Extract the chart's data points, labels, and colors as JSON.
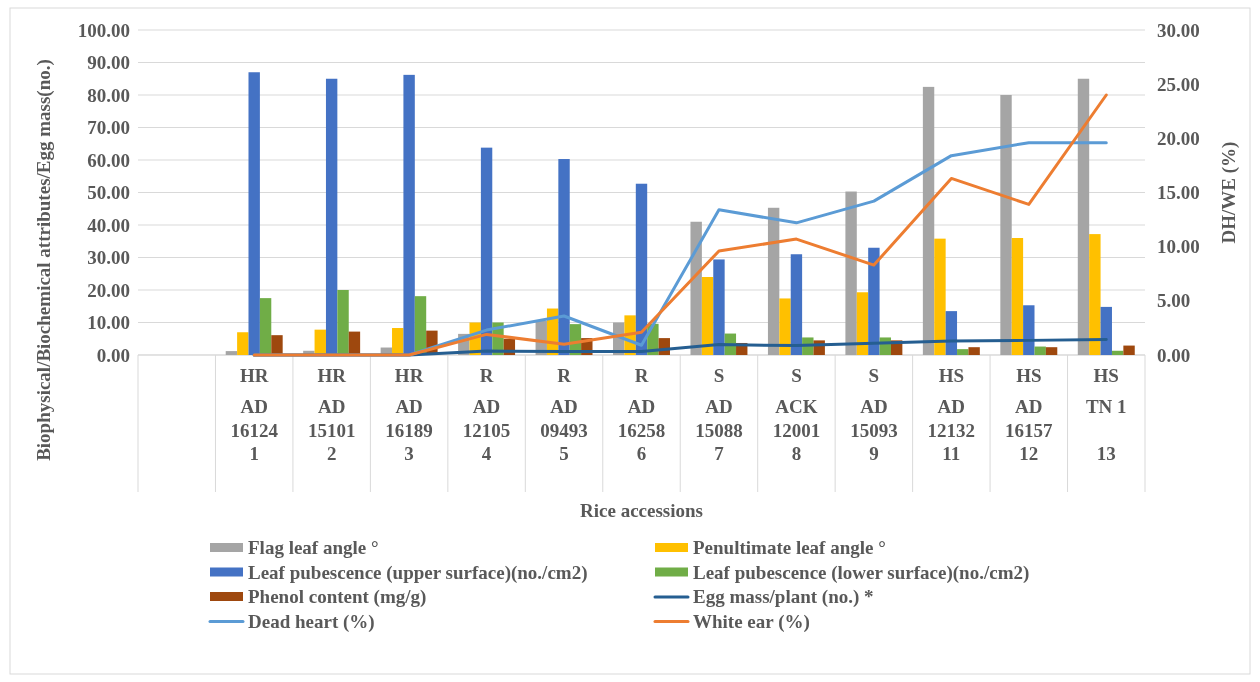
{
  "chart_data": {
    "type": "bar",
    "xlabel": "Rice accessions",
    "ylabel": "Biophysical/Biochemical attributes/Egg mass(no.)",
    "y2label": "DH/WE  (%)",
    "categories": [
      null,
      "HR\nAD 16124\n1",
      "HR\nAD 15101\n2",
      "HR\nAD 16189\n3",
      "R\nAD 12105\n4",
      "R\nAD 09493\n5",
      "R\nAD 16258\n6",
      "S\nAD 15088\n7",
      "S\nACK 12001\n8",
      "S\nAD 15093\n9",
      "HS\nAD 12132\n11",
      "HS\nAD 16157\n12",
      "HS\nTN 1\n13"
    ],
    "series": [
      {
        "name": "Flag leaf angle °",
        "color": "#a5a5a5",
        "values": [
          null,
          1.2,
          1.3,
          2.3,
          6.5,
          10.5,
          10,
          41,
          45.3,
          50.3,
          82.5,
          80,
          85
        ]
      },
      {
        "name": "Penultimate leaf angle °",
        "color": "#ffc000",
        "values": [
          null,
          7,
          7.8,
          8.3,
          10,
          14.3,
          12.2,
          24,
          17.4,
          19.3,
          35.8,
          36,
          37.2
        ]
      },
      {
        "name": "Leaf pubescence (upper surface)(no./cm2)",
        "color": "#4472c4",
        "values": [
          null,
          87,
          85,
          86.2,
          63.8,
          60.3,
          52.7,
          29.4,
          31,
          33,
          13.5,
          15.3,
          14.8
        ]
      },
      {
        "name": "Leaf pubescence  (lower surface)(no./cm2)",
        "color": "#70ad47",
        "values": [
          null,
          17.5,
          20,
          18.1,
          10,
          9.5,
          9.6,
          6.6,
          5.4,
          5.4,
          1.8,
          2.6,
          1.3
        ]
      },
      {
        "name": "Phenol content (mg/g)",
        "color": "#9e480e",
        "values": [
          null,
          6.1,
          7.2,
          7.5,
          5,
          5.2,
          5.2,
          3.7,
          4.5,
          4.5,
          2.4,
          2.4,
          2.9
        ]
      },
      {
        "name": "Egg mass/plant (no.) *",
        "type": "line",
        "color": "#255e91",
        "values": [
          null,
          0,
          0,
          0,
          1.2,
          1.1,
          1.1,
          3.2,
          2.9,
          3.6,
          4.3,
          4.5,
          4.8
        ]
      },
      {
        "name": "Dead heart (%)",
        "type": "line",
        "axis": "y2",
        "color": "#5b9bd5",
        "values": [
          null,
          0,
          0,
          0,
          2.3,
          3.6,
          0.9,
          13.4,
          12.2,
          14.2,
          18.4,
          19.6,
          19.6
        ]
      },
      {
        "name": "White ear (%)",
        "type": "line",
        "axis": "y2",
        "color": "#ed7d31",
        "values": [
          null,
          0,
          0,
          0,
          1.9,
          1.0,
          2.1,
          9.6,
          10.7,
          8.3,
          16.3,
          13.9,
          24.0
        ]
      }
    ],
    "ylim": [
      0,
      100
    ],
    "yticks": [
      {
        "value": 0,
        "label": "0.00"
      },
      {
        "value": 10,
        "label": "10.00"
      },
      {
        "value": 20,
        "label": "20.00"
      },
      {
        "value": 30,
        "label": "30.00"
      },
      {
        "value": 40,
        "label": "40.00"
      },
      {
        "value": 50,
        "label": "50.00"
      },
      {
        "value": 60,
        "label": "60.00"
      },
      {
        "value": 70,
        "label": "70.00"
      },
      {
        "value": 80,
        "label": "80.00"
      },
      {
        "value": 90,
        "label": "90.00"
      },
      {
        "value": 100,
        "label": "100.00"
      }
    ],
    "y2lim": [
      0,
      30
    ],
    "y2ticks": [
      {
        "value": 0,
        "label": "0.00"
      },
      {
        "value": 5,
        "label": "5.00"
      },
      {
        "value": 10,
        "label": "10.00"
      },
      {
        "value": 15,
        "label": "15.00"
      },
      {
        "value": 20,
        "label": "20.00"
      },
      {
        "value": 25,
        "label": "25.00"
      },
      {
        "value": 30,
        "label": "30.00"
      }
    ],
    "grid": "y",
    "legend": "bottom",
    "marker": "none",
    "line_style": "solid"
  }
}
